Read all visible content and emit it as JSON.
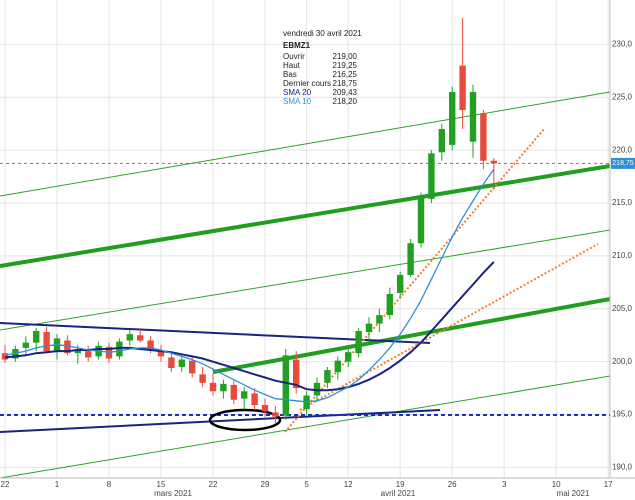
{
  "chart_data": {
    "type": "candlestick",
    "categories": [
      "2021-02-22",
      "2021-02-23",
      "2021-02-24",
      "2021-02-25",
      "2021-02-26",
      "2021-03-01",
      "2021-03-02",
      "2021-03-03",
      "2021-03-04",
      "2021-03-05",
      "2021-03-08",
      "2021-03-09",
      "2021-03-10",
      "2021-03-11",
      "2021-03-12",
      "2021-03-15",
      "2021-03-16",
      "2021-03-17",
      "2021-03-18",
      "2021-03-19",
      "2021-03-22",
      "2021-03-23",
      "2021-03-24",
      "2021-03-25",
      "2021-03-26",
      "2021-03-29",
      "2021-03-30",
      "2021-03-31",
      "2021-04-01",
      "2021-04-06",
      "2021-04-07",
      "2021-04-08",
      "2021-04-09",
      "2021-04-12",
      "2021-04-13",
      "2021-04-14",
      "2021-04-15",
      "2021-04-16",
      "2021-04-19",
      "2021-04-20",
      "2021-04-21",
      "2021-04-22",
      "2021-04-23",
      "2021-04-26",
      "2021-04-27",
      "2021-04-28",
      "2021-04-29",
      "2021-04-30"
    ],
    "open": [
      200.8,
      200.3,
      201.3,
      201.8,
      202.8,
      201.0,
      202.0,
      200.8,
      201.0,
      200.5,
      201.4,
      200.5,
      202.0,
      202.5,
      202.0,
      201.0,
      200.4,
      199.5,
      200.1,
      198.8,
      198.0,
      197.2,
      197.8,
      196.5,
      197.0,
      195.9,
      195.2,
      194.9,
      200.2,
      195.5,
      196.8,
      198.0,
      199.0,
      200.0,
      200.8,
      202.8,
      203.6,
      204.4,
      206.5,
      208.2,
      211.2,
      215.4,
      219.8,
      220.5,
      228.0,
      220.8,
      223.5,
      219.0
    ],
    "high": [
      201.6,
      201.5,
      202.4,
      203.2,
      203.3,
      202.6,
      202.5,
      201.6,
      201.5,
      201.9,
      201.8,
      202.2,
      203.0,
      203.2,
      202.4,
      201.6,
      200.9,
      200.6,
      200.4,
      199.5,
      198.9,
      198.3,
      198.2,
      197.6,
      197.5,
      196.5,
      195.8,
      201.2,
      201.0,
      197.2,
      198.5,
      199.5,
      200.5,
      201.2,
      203.2,
      204.2,
      205.0,
      207.0,
      208.5,
      211.6,
      216.0,
      220.0,
      222.5,
      226.0,
      232.5,
      226.2,
      223.8,
      219.25
    ],
    "low": [
      199.9,
      200.0,
      200.5,
      201.0,
      200.8,
      200.2,
      200.6,
      199.8,
      200.0,
      200.2,
      199.9,
      200.2,
      201.5,
      201.8,
      200.8,
      200.0,
      199.0,
      199.0,
      198.5,
      197.6,
      196.8,
      196.5,
      196.0,
      195.5,
      195.4,
      194.8,
      194.2,
      194.5,
      197.0,
      195.0,
      196.2,
      197.5,
      198.3,
      199.5,
      200.4,
      202.0,
      202.8,
      204.0,
      206.0,
      208.0,
      210.8,
      215.0,
      219.0,
      220.0,
      222.0,
      219.3,
      218.2,
      216.25
    ],
    "close": [
      200.2,
      201.2,
      201.8,
      202.9,
      201.0,
      202.2,
      200.8,
      201.2,
      200.4,
      201.5,
      200.3,
      201.9,
      202.6,
      202.0,
      201.1,
      200.5,
      199.4,
      200.2,
      198.9,
      198.0,
      197.2,
      197.9,
      196.4,
      197.2,
      195.9,
      195.3,
      194.8,
      200.6,
      197.5,
      196.8,
      198.0,
      199.2,
      200.1,
      200.9,
      202.9,
      203.6,
      204.4,
      206.4,
      208.2,
      211.2,
      215.5,
      219.7,
      222.0,
      225.5,
      223.8,
      225.5,
      219.0,
      218.75
    ],
    "up_color": "#22a022",
    "down_color": "#e84b3c",
    "series": [
      {
        "name": "SMA 20",
        "color": "#1a237e",
        "values": [
          200.4,
          200.5,
          200.6,
          200.8,
          200.9,
          201.0,
          201.0,
          201.1,
          201.1,
          201.2,
          201.2,
          201.3,
          201.3,
          201.2,
          201.1,
          201.0,
          200.9,
          200.7,
          200.5,
          200.3,
          200.0,
          199.7,
          199.4,
          199.1,
          198.8,
          198.5,
          198.2,
          198.0,
          197.8,
          197.4,
          197.3,
          197.3,
          197.4,
          197.6,
          197.9,
          198.3,
          198.8,
          199.4,
          200.1,
          200.9,
          201.8,
          202.9,
          204.0,
          205.1,
          206.2,
          207.3,
          208.4,
          209.43
        ]
      },
      {
        "name": "SMA 10",
        "color": "#2f8fd8",
        "values": [
          200.6,
          200.8,
          201.0,
          201.3,
          201.5,
          201.6,
          201.5,
          201.3,
          201.1,
          201.0,
          200.9,
          201.0,
          201.2,
          201.3,
          201.3,
          201.1,
          200.8,
          200.5,
          200.2,
          199.8,
          199.3,
          198.8,
          198.3,
          197.8,
          197.3,
          196.9,
          196.5,
          196.4,
          196.3,
          196.2,
          196.3,
          196.6,
          197.1,
          197.6,
          198.3,
          199.2,
          200.2,
          201.3,
          202.6,
          204.1,
          205.8,
          207.8,
          209.8,
          211.8,
          213.6,
          215.2,
          216.8,
          218.2
        ]
      }
    ],
    "ylim": [
      189.0,
      234.2
    ],
    "yticks": [
      {
        "value": 190,
        "label": "190,0"
      },
      {
        "value": 195,
        "label": "195,0"
      },
      {
        "value": 200,
        "label": "200,0"
      },
      {
        "value": 205,
        "label": "205,0"
      },
      {
        "value": 210,
        "label": "210,0"
      },
      {
        "value": 215,
        "label": "215,0"
      },
      {
        "value": 220,
        "label": "220,0"
      },
      {
        "value": 225,
        "label": "225,0"
      },
      {
        "value": 230,
        "label": "230,0"
      }
    ],
    "xticks": [
      {
        "value": "2021-02-22",
        "label": "22"
      },
      {
        "value": "2021-03-01",
        "label": "1"
      },
      {
        "value": "2021-03-08",
        "label": "8"
      },
      {
        "value": "2021-03-15",
        "label": "15"
      },
      {
        "value": "2021-03-22",
        "label": "22"
      },
      {
        "value": "2021-03-29",
        "label": "29"
      },
      {
        "value": "2021-04-05",
        "label": "5"
      },
      {
        "value": "2021-04-12",
        "label": "12"
      },
      {
        "value": "2021-04-19",
        "label": "19"
      },
      {
        "value": "2021-04-26",
        "label": "26"
      },
      {
        "value": "2021-05-03",
        "label": "3"
      },
      {
        "value": "2021-05-10",
        "label": "10"
      },
      {
        "value": "2021-05-17",
        "label": "17"
      }
    ],
    "month_labels": [
      "mars 2021",
      "avril 2021",
      "mai 2021"
    ],
    "grid": true,
    "last_price": {
      "value": 218.75,
      "label": "218,75"
    },
    "tooltip": {
      "date": "vendredi 30 avril 2021",
      "symbol": "EBMZ1",
      "rows": [
        [
          "Ouvrir",
          "219,00"
        ],
        [
          "Haut",
          "219,25"
        ],
        [
          "Bas",
          "216,25"
        ],
        [
          "Dernier cours",
          "218,75"
        ],
        [
          "SMA 20",
          "209,43"
        ],
        [
          "SMA 10",
          "218,20"
        ]
      ]
    }
  }
}
